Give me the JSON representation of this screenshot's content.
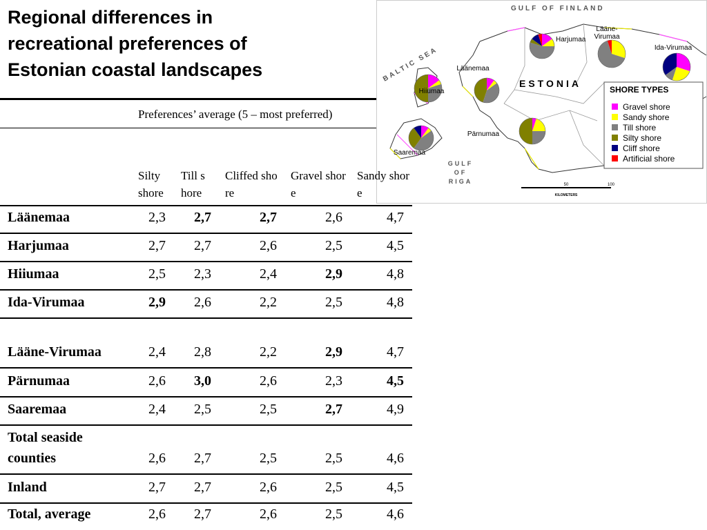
{
  "title": "Regional differences in recreational preferences of Estonian coastal landscapes",
  "table": {
    "group_header": "Preferences’ average (5 – most preferred)",
    "columns": [
      "Silty shore",
      "Till shore",
      "Cliffed shore",
      "Gravel shore",
      "Sandy shore"
    ],
    "rows": [
      {
        "name": "Läänemaa",
        "values": [
          "2,3",
          "2,7",
          "2,7",
          "2,6",
          "4,7"
        ],
        "bold": [
          1,
          2
        ]
      },
      {
        "name": "Harjumaa",
        "values": [
          "2,7",
          "2,7",
          "2,6",
          "2,5",
          "4,5"
        ],
        "bold": []
      },
      {
        "name": "Hiiumaa",
        "values": [
          "2,5",
          "2,3",
          "2,4",
          "2,9",
          "4,8"
        ],
        "bold": [
          3
        ]
      },
      {
        "name": "Ida-Virumaa",
        "values": [
          "2,9",
          "2,6",
          "2,2",
          "2,5",
          "4,8"
        ],
        "bold": [
          0
        ]
      },
      {
        "name": "Lääne-Virumaa",
        "values": [
          "2,4",
          "2,8",
          "2,2",
          "2,9",
          "4,7"
        ],
        "bold": [
          3
        ]
      },
      {
        "name": "Pärnumaa",
        "values": [
          "2,6",
          "3,0",
          "2,6",
          "2,3",
          "4,5"
        ],
        "bold": [
          1,
          4
        ]
      },
      {
        "name": "Saaremaa",
        "values": [
          "2,4",
          "2,5",
          "2,5",
          "2,7",
          "4,9"
        ],
        "bold": [
          3
        ]
      },
      {
        "name": "Total seaside counties",
        "values": [
          "2,6",
          "2,7",
          "2,5",
          "2,5",
          "4,6"
        ],
        "bold": []
      },
      {
        "name": "Inland",
        "values": [
          "2,7",
          "2,7",
          "2,6",
          "2,5",
          "4,5"
        ],
        "bold": []
      },
      {
        "name": "Total, average",
        "values": [
          "2,6",
          "2,7",
          "2,6",
          "2,5",
          "4,6"
        ],
        "bold": []
      }
    ]
  },
  "map": {
    "gulf_of_finland": "GULF OF FINLAND",
    "baltic_sea": "BALTIC SEA",
    "gulf_of_riga": "GULF OF RIGA",
    "country": "ESTONIA",
    "legend_title": "SHORE TYPES",
    "shore_types": [
      {
        "name": "Gravel shore",
        "color": "#ff00ff"
      },
      {
        "name": "Sandy shore",
        "color": "#ffff00"
      },
      {
        "name": "Till shore",
        "color": "#808080"
      },
      {
        "name": "Silty shore",
        "color": "#808000"
      },
      {
        "name": "Cliff shore",
        "color": "#000080"
      },
      {
        "name": "Artificial shore",
        "color": "#ff0000"
      }
    ],
    "scale_ticks": [
      "50",
      "100"
    ],
    "scale_unit": "KILOMETERS",
    "counties": [
      {
        "name": "Harjumaa",
        "values": [
          15,
          10,
          55,
          5,
          10,
          5
        ]
      },
      {
        "name": "Lääne-Virumaa",
        "values": [
          0,
          30,
          65,
          0,
          0,
          5
        ]
      },
      {
        "name": "Ida-Virumaa",
        "values": [
          30,
          25,
          10,
          0,
          35,
          0
        ]
      },
      {
        "name": "Läänemaa",
        "values": [
          10,
          5,
          40,
          45,
          0,
          0
        ]
      },
      {
        "name": "Hiiumaa",
        "values": [
          15,
          5,
          30,
          50,
          0,
          0
        ]
      },
      {
        "name": "Pärnumaa",
        "values": [
          5,
          20,
          25,
          50,
          0,
          0
        ]
      },
      {
        "name": "Saaremaa",
        "values": [
          10,
          5,
          45,
          30,
          10,
          0
        ]
      }
    ]
  }
}
